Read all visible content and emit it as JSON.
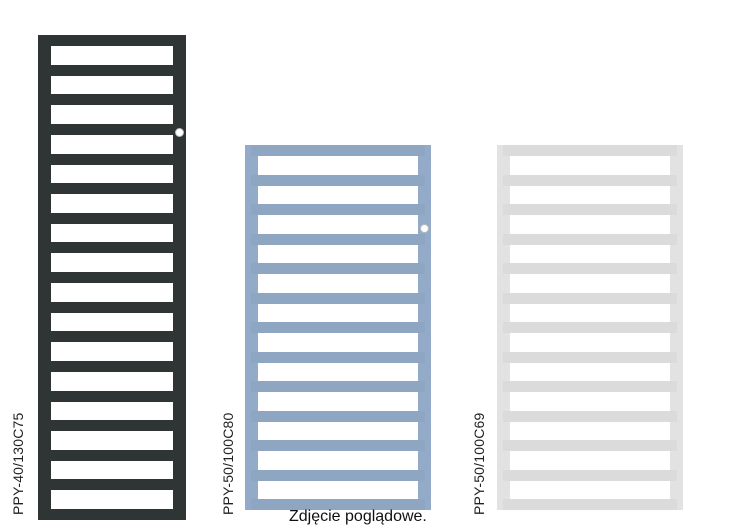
{
  "products": [
    {
      "model": "PPY-40/130C75",
      "color": "#2f3535",
      "bar_count": 17,
      "valve": true
    },
    {
      "model": "PPY-50/100C80",
      "color": "#93abc8",
      "bar_count": 13,
      "valve": true
    },
    {
      "model": "PPY-50/100C69",
      "color": "#e2e2e2",
      "bar_count": 13,
      "valve": false
    }
  ],
  "caption": "Zdjęcie poglądowe."
}
